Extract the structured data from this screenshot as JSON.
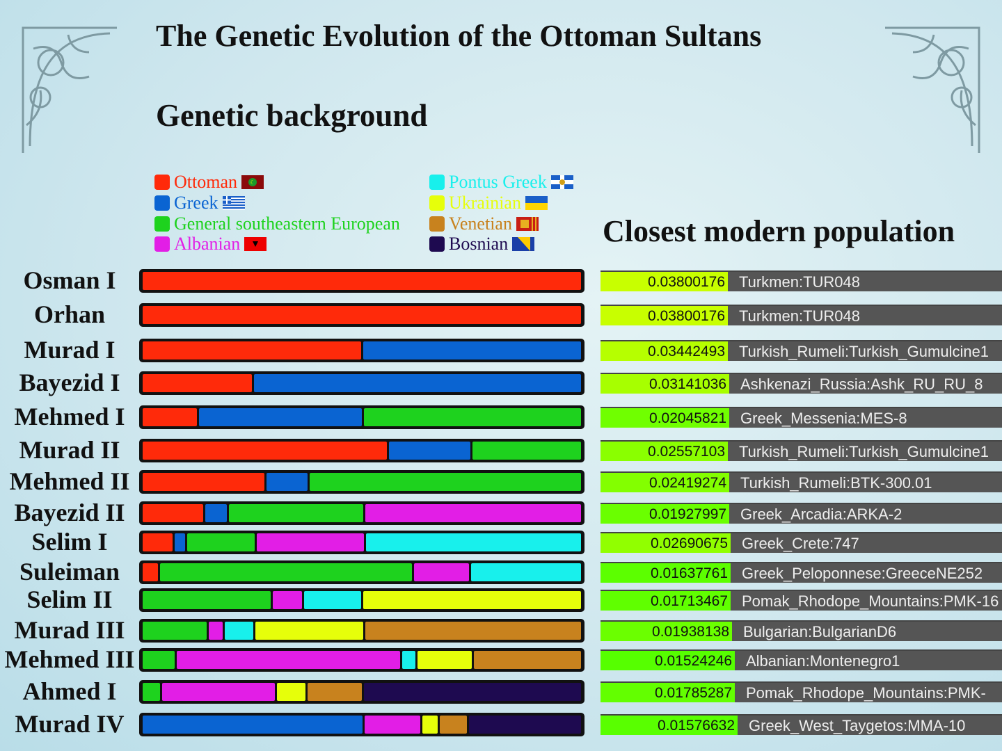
{
  "title": "The Genetic Evolution of  the Ottoman Sultans",
  "subtitle": "Genetic background",
  "subtitle2": "Closest modern population",
  "chart_data": {
    "type": "bar",
    "orientation": "horizontal-stacked",
    "unit": "percent",
    "xlim": [
      0,
      100
    ],
    "grid": false,
    "legend_placement": "top",
    "legend": [
      {
        "name": "Ottoman",
        "color": "#ff2a0a",
        "flag": "ottoman-flag-icon"
      },
      {
        "name": "Greek",
        "color": "#0a64d2",
        "flag": "greece-flag-icon"
      },
      {
        "name": "General southeastern European",
        "color": "#1ed21e",
        "flag": ""
      },
      {
        "name": "Albanian",
        "color": "#e21ee6",
        "flag": "albania-flag-icon"
      },
      {
        "name": "Pontus Greek",
        "color": "#18f0ec",
        "flag": "pontus-flag-icon"
      },
      {
        "name": "Ukrainian",
        "color": "#e6ff0a",
        "flag": "ukraine-flag-icon"
      },
      {
        "name": "Venetian",
        "color": "#c8821e",
        "flag": "venice-flag-icon"
      },
      {
        "name": "Bosnian",
        "color": "#1e0a50",
        "flag": "bosnia-flag-icon"
      }
    ],
    "categories": [
      "Osman I",
      "Orhan",
      "Murad I",
      "Bayezid I",
      "Mehmed I",
      "Murad II",
      "Mehmed II",
      "Bayezid II",
      "Selim I",
      "Suleiman",
      "Selim II",
      "Murad III",
      "Mehmed III",
      "Ahmed I",
      "Murad IV"
    ],
    "series": [
      {
        "name": "Ottoman",
        "values": [
          100,
          100,
          50,
          25,
          12.5,
          56.25,
          28.1,
          14,
          7,
          3.5,
          0,
          0,
          0,
          0,
          0
        ]
      },
      {
        "name": "Greek",
        "values": [
          0,
          0,
          50,
          75,
          37.5,
          18.75,
          9.4,
          5,
          2.4,
          0,
          0,
          0,
          0,
          0,
          51
        ]
      },
      {
        "name": "General southeastern European",
        "values": [
          0,
          0,
          0,
          0,
          50,
          25,
          62.5,
          31,
          15.6,
          58.4,
          29.4,
          14.8,
          7.4,
          4,
          0
        ]
      },
      {
        "name": "Albanian",
        "values": [
          0,
          0,
          0,
          0,
          0,
          0,
          0,
          50,
          25,
          12.7,
          6.7,
          3.3,
          52,
          26,
          13
        ]
      },
      {
        "name": "Pontus Greek",
        "values": [
          0,
          0,
          0,
          0,
          0,
          0,
          0,
          0,
          50,
          25.4,
          13,
          6.5,
          3,
          0,
          0
        ]
      },
      {
        "name": "Ukrainian",
        "values": [
          0,
          0,
          0,
          0,
          0,
          0,
          0,
          0,
          0,
          0,
          50,
          25,
          12.6,
          6.6,
          3.5
        ]
      },
      {
        "name": "Venetian",
        "values": [
          0,
          0,
          0,
          0,
          0,
          0,
          0,
          0,
          0,
          0,
          0,
          50,
          25,
          12.5,
          6.3
        ]
      },
      {
        "name": "Bosnian",
        "values": [
          0,
          0,
          0,
          0,
          0,
          0,
          0,
          0,
          0,
          0,
          0,
          0,
          0,
          50,
          26
        ]
      }
    ]
  },
  "closest_populations": [
    {
      "distance": "0.03800176",
      "population": "Turkmen:TUR048"
    },
    {
      "distance": "0.03800176",
      "population": "Turkmen:TUR048"
    },
    {
      "distance": "0.03442493",
      "population": "Turkish_Rumeli:Turkish_Gumulcine1"
    },
    {
      "distance": "0.03141036",
      "population": "Ashkenazi_Russia:Ashk_RU_RU_8"
    },
    {
      "distance": "0.02045821",
      "population": "Greek_Messenia:MES-8"
    },
    {
      "distance": "0.02557103",
      "population": "Turkish_Rumeli:Turkish_Gumulcine1"
    },
    {
      "distance": "0.02419274",
      "population": "Turkish_Rumeli:BTK-300.01"
    },
    {
      "distance": "0.01927997",
      "population": "Greek_Arcadia:ARKA-2"
    },
    {
      "distance": "0.02690675",
      "population": "Greek_Crete:747"
    },
    {
      "distance": "0.01637761",
      "population": "Greek_Peloponnese:GreeceNE252"
    },
    {
      "distance": "0.01713467",
      "population": "Pomak_Rhodope_Mountains:PMK-16"
    },
    {
      "distance": "0.01938138",
      "population": "Bulgarian:BulgarianD6"
    },
    {
      "distance": "0.01524246",
      "population": "Albanian:Montenegro1"
    },
    {
      "distance": "0.01785287",
      "population": "Pomak_Rhodope_Mountains:PMK-"
    },
    {
      "distance": "0.01576632",
      "population": "Greek_West_Taygetos:MMA-10"
    }
  ]
}
